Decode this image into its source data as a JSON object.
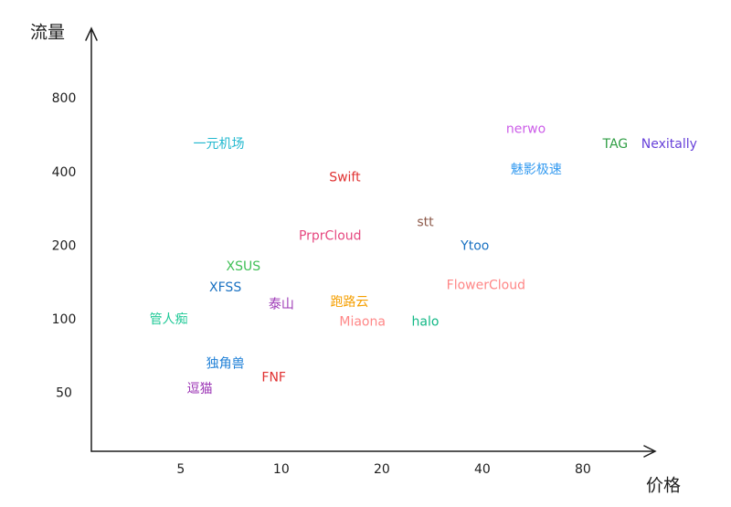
{
  "chart_data": {
    "type": "scatter",
    "x_label": "价格",
    "y_label": "流量",
    "xscale": "log",
    "yscale": "log",
    "xlim": [
      2.7,
      130
    ],
    "ylim": [
      29,
      1500
    ],
    "xticks": [
      5,
      10,
      20,
      40,
      80
    ],
    "yticks": [
      50,
      100,
      200,
      400,
      800
    ],
    "series": [
      {
        "name": "一元机场",
        "color": "#22b8cf",
        "x": [
          6.5
        ],
        "values": [
          520
        ]
      },
      {
        "name": "nerwo",
        "color": "#cc5de8",
        "x": [
          54
        ],
        "values": [
          600
        ]
      },
      {
        "name": "TAG",
        "color": "#2f9e44",
        "x": [
          100
        ],
        "values": [
          520
        ]
      },
      {
        "name": "Nexitally",
        "color": "#6741d9",
        "x": [
          145
        ],
        "values": [
          520
        ]
      },
      {
        "name": "魅影极速",
        "color": "#339af0",
        "x": [
          58
        ],
        "values": [
          410
        ]
      },
      {
        "name": "Swift",
        "color": "#e03131",
        "x": [
          15.5
        ],
        "values": [
          380
        ]
      },
      {
        "name": "stt",
        "color": "#8d5a4a",
        "x": [
          27
        ],
        "values": [
          250
        ]
      },
      {
        "name": "PrprCloud",
        "color": "#e64980",
        "x": [
          14
        ],
        "values": [
          220
        ]
      },
      {
        "name": "Ytoo",
        "color": "#1971c2",
        "x": [
          38
        ],
        "values": [
          200
        ]
      },
      {
        "name": "XSUS",
        "color": "#40c057",
        "x": [
          7.7
        ],
        "values": [
          165
        ]
      },
      {
        "name": "XFSS",
        "color": "#1971c2",
        "x": [
          6.8
        ],
        "values": [
          135
        ]
      },
      {
        "name": "FlowerCloud",
        "color": "#ff8787",
        "x": [
          41
        ],
        "values": [
          138
        ]
      },
      {
        "name": "泰山",
        "color": "#9c36b5",
        "x": [
          10
        ],
        "values": [
          115
        ]
      },
      {
        "name": "跑路云",
        "color": "#f59f00",
        "x": [
          16
        ],
        "values": [
          118
        ]
      },
      {
        "name": "管人痴",
        "color": "#20c997",
        "x": [
          4.6
        ],
        "values": [
          100
        ]
      },
      {
        "name": "Miaona",
        "color": "#ff8787",
        "x": [
          17.5
        ],
        "values": [
          98
        ]
      },
      {
        "name": "halo",
        "color": "#12b886",
        "x": [
          27
        ],
        "values": [
          98
        ]
      },
      {
        "name": "独角兽",
        "color": "#1c7ed6",
        "x": [
          6.8
        ],
        "values": [
          66
        ]
      },
      {
        "name": "FNF",
        "color": "#e03131",
        "x": [
          9.5
        ],
        "values": [
          58
        ]
      },
      {
        "name": "逗猫",
        "color": "#9c36b5",
        "x": [
          5.7
        ],
        "values": [
          52
        ]
      }
    ]
  }
}
